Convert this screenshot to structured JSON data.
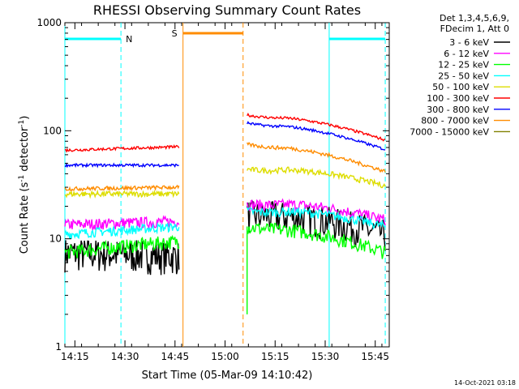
{
  "chart_data": {
    "type": "line",
    "title": "RHESSI Observing Summary Count Rates",
    "xlabel": "Start Time (05-Mar-09 14:10:42)",
    "ylabel_prefix": "Count Rate (s",
    "ylabel_sup1": "-1",
    "ylabel_mid": " detector",
    "ylabel_sup2": "-1",
    "ylabel_suffix": ")",
    "y_scale": "log",
    "ylim": [
      1,
      1000
    ],
    "xlim_minutes": [
      14.2,
      15.82
    ],
    "x_ticks": [
      {
        "label": "14:15",
        "t": 14.25
      },
      {
        "label": "14:30",
        "t": 14.5
      },
      {
        "label": "14:45",
        "t": 14.75
      },
      {
        "label": "15:00",
        "t": 15.0
      },
      {
        "label": "15:15",
        "t": 15.25
      },
      {
        "label": "15:30",
        "t": 15.5
      },
      {
        "label": "15:45",
        "t": 15.75
      }
    ],
    "y_ticks": [
      {
        "label": "1",
        "v": 1
      },
      {
        "label": "10",
        "v": 10
      },
      {
        "label": "100",
        "v": 100
      },
      {
        "label": "1000",
        "v": 1000
      }
    ],
    "legend": {
      "header_line1": "Det 1,3,4,5,6,9,",
      "header_line2": "FDecim 1, Att 0",
      "placement": "right"
    },
    "series": [
      {
        "name": "3 - 6 keV",
        "color": "#000000",
        "seg1": [
          7.5,
          7.0
        ],
        "seg2": [
          17,
          11
        ],
        "noise": 0.35
      },
      {
        "name": "6 - 12 keV",
        "color": "#ff00ff",
        "seg1": [
          13.5,
          14.5
        ],
        "seg2": [
          21,
          15
        ],
        "noise": 0.12
      },
      {
        "name": "12 - 25 keV",
        "color": "#00ff00",
        "seg1": [
          7.5,
          9.5
        ],
        "seg2": [
          13,
          7.5
        ],
        "noise": 0.15
      },
      {
        "name": "25 - 50 keV",
        "color": "#00ffff",
        "seg1": [
          11,
          13
        ],
        "seg2": [
          18,
          13
        ],
        "noise": 0.1
      },
      {
        "name": "50 - 100 keV",
        "color": "#dddd00",
        "seg1": [
          26,
          26
        ],
        "seg2": [
          44,
          31
        ],
        "noise": 0.06
      },
      {
        "name": "100 - 300 keV",
        "color": "#ff0000",
        "seg1": [
          66,
          71
        ],
        "seg2": [
          140,
          82
        ],
        "noise": 0.03
      },
      {
        "name": "300 - 800 keV",
        "color": "#0000ff",
        "seg1": [
          48,
          48
        ],
        "seg2": [
          118,
          67
        ],
        "noise": 0.03
      },
      {
        "name": "800 - 7000 keV",
        "color": "#ff8c00",
        "seg1": [
          29,
          30
        ],
        "seg2": [
          75,
          42
        ],
        "noise": 0.04
      },
      {
        "name": "7000 - 15000 keV",
        "color": "#808000",
        "seg1": null,
        "seg2": null,
        "noise": 0
      }
    ],
    "segments": {
      "seg1": [
        14.2,
        14.77
      ],
      "seg2": [
        15.11,
        15.8
      ]
    },
    "annotations": {
      "night_label": "N",
      "saa_label": "S",
      "night_color": "#00ffff",
      "saa_color": "#ff8c00",
      "night_intervals": [
        [
          14.2,
          14.48
        ],
        [
          15.52,
          15.8
        ]
      ],
      "night_solid_lines": [
        14.2,
        15.52
      ],
      "night_dashed_lines": [
        14.48,
        15.8
      ],
      "saa_interval": [
        14.79,
        15.09
      ],
      "saa_solid_line": 14.79,
      "saa_dashed_line": 15.09
    },
    "grid": false
  },
  "footer": {
    "timestamp": "14-Oct-2021 03:18"
  }
}
